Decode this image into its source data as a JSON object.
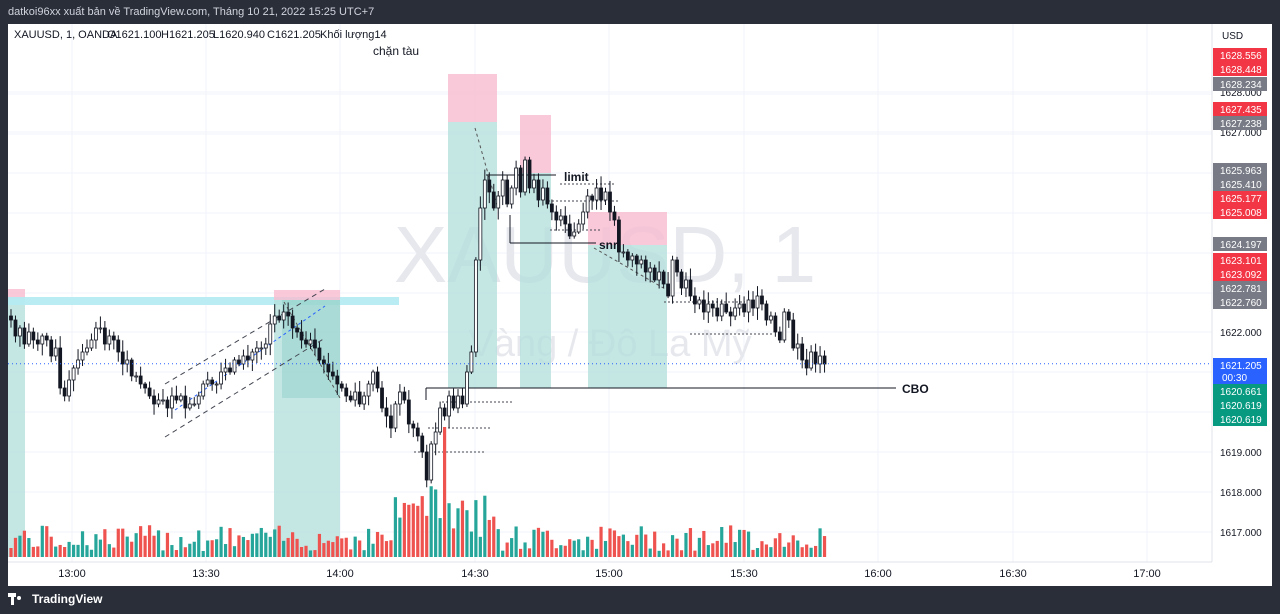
{
  "header": {
    "publisher": "datkoi96xx xuất bản về TradingView.com, Tháng 10 21, 2022 15:25 UTC+7"
  },
  "legend": {
    "symbol": "XAUUSD, 1, OANDA",
    "open": "O1621.100",
    "high": "H1621.205",
    "low": "L1620.940",
    "close": "C1621.205",
    "volume": "Khối lượng14"
  },
  "watermark": {
    "symbol": "XAUUSD, 1",
    "description": "Vàng / Đô La Mỹ"
  },
  "annotations": {
    "chan_tau": "chặn tàu",
    "limit": "limit",
    "snr": "snr",
    "cbo": "CBO"
  },
  "price_axis": {
    "currency": "USD",
    "countdown": "00:30",
    "current_price": "1621.205",
    "badges": [
      {
        "label": "1628.556",
        "color": "#f23645",
        "value": 1628.556
      },
      {
        "label": "1628.448",
        "color": "#f23645",
        "value": 1628.448
      },
      {
        "label": "1628.234",
        "color": "#787b86",
        "value": 1628.234
      },
      {
        "label": "1627.435",
        "color": "#f23645",
        "value": 1627.435
      },
      {
        "label": "1627.238",
        "color": "#787b86",
        "value": 1627.238
      },
      {
        "label": "1625.963",
        "color": "#787b86",
        "value": 1625.963
      },
      {
        "label": "1625.410",
        "color": "#787b86",
        "value": 1625.41
      },
      {
        "label": "1625.177",
        "color": "#f23645",
        "value": 1625.177
      },
      {
        "label": "1625.008",
        "color": "#f23645",
        "value": 1625.008
      },
      {
        "label": "1624.197",
        "color": "#787b86",
        "value": 1624.197
      },
      {
        "label": "1623.101",
        "color": "#f23645",
        "value": 1623.101
      },
      {
        "label": "1623.092",
        "color": "#f23645",
        "value": 1623.092
      },
      {
        "label": "1622.781",
        "color": "#787b86",
        "value": 1622.781
      },
      {
        "label": "1622.760",
        "color": "#787b86",
        "value": 1622.76
      },
      {
        "label": "1620.661",
        "color": "#089981",
        "value": 1620.661
      },
      {
        "label": "1620.619",
        "color": "#089981",
        "value": 1620.619
      },
      {
        "label": "1620.619",
        "color": "#089981",
        "value": 1620.619
      }
    ]
  },
  "branding": {
    "name": "TradingView"
  },
  "colors": {
    "up": "#089981",
    "down": "#f23645",
    "volume_up": "#26a69a",
    "volume_down": "#ef5350",
    "current": "#2962ff",
    "profit_zone": "#b2dfdb",
    "loss_zone": "#f8bbd0",
    "channel": "#b2ebf2"
  },
  "chart_data": {
    "type": "candlestick",
    "symbol": "XAUUSD",
    "timeframe": "1",
    "exchange": "OANDA",
    "x_ticks": [
      "13:00",
      "13:30",
      "14:00",
      "14:30",
      "15:00",
      "15:30",
      "16:00",
      "16:30",
      "17:00"
    ],
    "y_ticks": [
      "1628.000",
      "1627.000",
      "1622.000",
      "1619.000",
      "1618.000",
      "1617.000"
    ],
    "ylim": [
      1616.4,
      1629.8
    ],
    "series_close": [
      1622.3,
      1621.9,
      1622.1,
      1621.7,
      1622.0,
      1621.8,
      1621.7,
      1621.9,
      1621.8,
      1621.4,
      1621.6,
      1620.6,
      1620.4,
      1620.8,
      1621.1,
      1621.3,
      1621.5,
      1621.6,
      1621.8,
      1622.1,
      1622.1,
      1621.7,
      1621.9,
      1621.8,
      1621.5,
      1621.2,
      1621.3,
      1620.9,
      1620.9,
      1620.7,
      1620.6,
      1620.4,
      1620.2,
      1620.3,
      1620.3,
      1620.1,
      1620.4,
      1620.3,
      1620.4,
      1620.1,
      1620.2,
      1620.2,
      1620.4,
      1620.7,
      1620.8,
      1620.7,
      1620.7,
      1621.0,
      1621.1,
      1621.0,
      1621.3,
      1621.2,
      1621.4,
      1621.3,
      1621.5,
      1621.6,
      1621.6,
      1621.7,
      1622.2,
      1622.4,
      1622.3,
      1622.5,
      1622.4,
      1622.1,
      1622.0,
      1621.8,
      1621.7,
      1621.8,
      1621.6,
      1621.3,
      1621.2,
      1621.0,
      1620.9,
      1620.7,
      1620.6,
      1620.4,
      1620.3,
      1620.5,
      1620.2,
      1620.4,
      1620.7,
      1621.0,
      1620.6,
      1620.1,
      1619.9,
      1619.6,
      1620.2,
      1620.5,
      1620.3,
      1619.7,
      1619.6,
      1619.4,
      1619.0,
      1618.3,
      1619.2,
      1619.5,
      1620.1,
      1619.9,
      1620.4,
      1620.1,
      1620.4,
      1620.2,
      1621.0,
      1621.5,
      1623.8,
      1625.1,
      1625.8,
      1625.5,
      1625.1,
      1625.4,
      1625.8,
      1625.2,
      1625.6,
      1626.1,
      1625.5,
      1626.3,
      1625.6,
      1625.8,
      1625.3,
      1625.6,
      1625.2,
      1625.0,
      1624.8,
      1624.9,
      1624.7,
      1624.4,
      1624.5,
      1624.7,
      1625.0,
      1625.4,
      1625.3,
      1625.6,
      1625.3,
      1625.5,
      1625.0,
      1624.8,
      1624.0,
      1624.0,
      1623.8,
      1623.9,
      1623.7,
      1623.8,
      1623.5,
      1623.6,
      1623.3,
      1623.5,
      1623.2,
      1622.9,
      1623.8,
      1623.5,
      1623.1,
      1623.3,
      1622.9,
      1622.7,
      1622.8,
      1622.5,
      1622.7,
      1622.6,
      1622.4,
      1622.7,
      1622.5,
      1622.4,
      1622.6,
      1622.7,
      1622.5,
      1622.8,
      1622.6,
      1622.9,
      1622.7,
      1622.3,
      1622.4,
      1622.0,
      1621.8,
      1622.5,
      1622.3,
      1621.6,
      1621.7,
      1621.3,
      1621.1,
      1621.5,
      1621.2,
      1621.4,
      1621.2
    ]
  }
}
